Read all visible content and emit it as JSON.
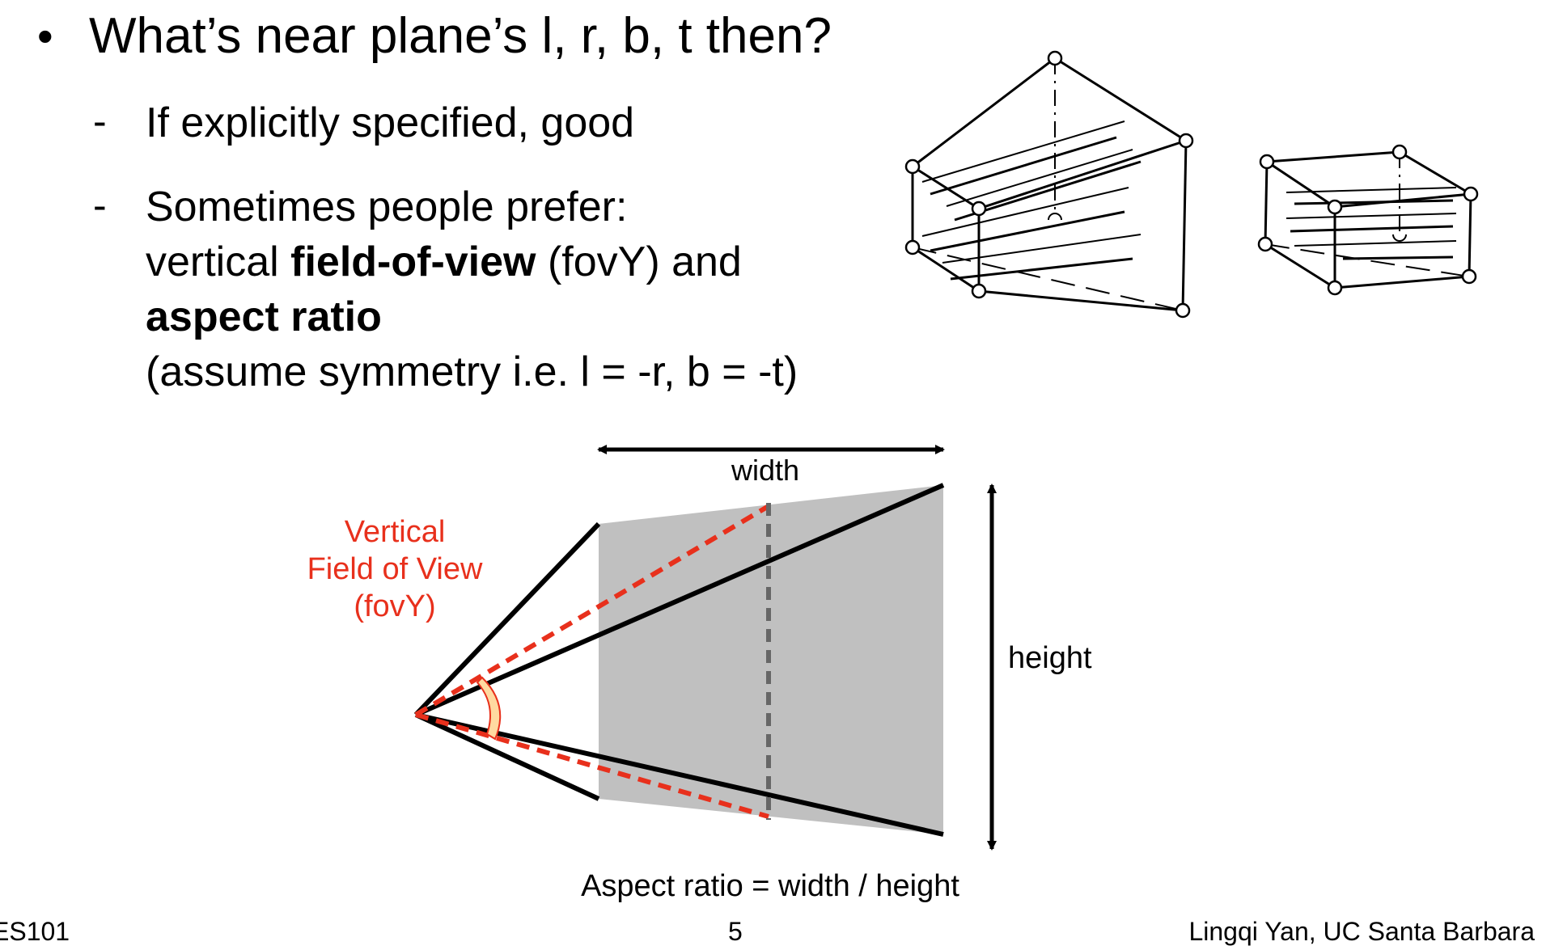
{
  "slide": {
    "bullet": "What’s near plane’s l, r, b, t then?",
    "sub1": "If explicitly specified, good",
    "sub2": {
      "line1": "Sometimes people prefer:",
      "line2_pre": "vertical ",
      "line2_bold": "field-of-view",
      "line2_post": " (fovY) and",
      "line3_bold": "aspect ratio",
      "line4": "(assume symmetry i.e. l = -r, b = -t)"
    }
  },
  "diagram": {
    "width_label": "width",
    "height_label": "height",
    "fov_label": [
      "Vertical",
      "Field of View",
      "(fovY)"
    ],
    "aspect_formula": "Aspect ratio = width / height",
    "colors": {
      "frustum_fill": "#c0c0c0",
      "fov_red": "#e8301c",
      "arc_fill": "#ffd9a0",
      "arc_stroke": "#e8301c",
      "center_dash": "#666666"
    }
  },
  "footer": {
    "left": "ES101",
    "page": "5",
    "right": "Lingqi Yan, UC Santa Barbara"
  }
}
